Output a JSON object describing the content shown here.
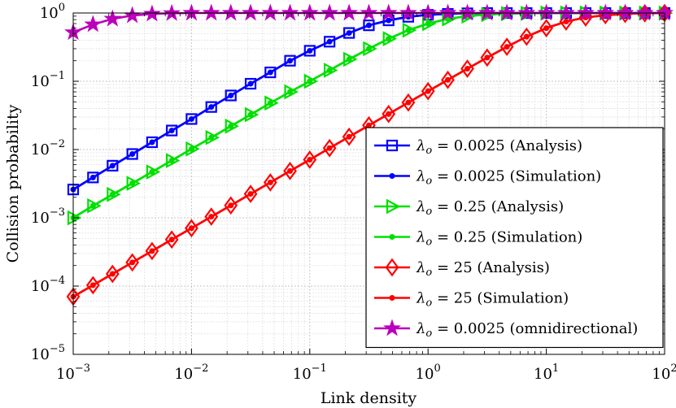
{
  "chart_data": {
    "type": "line",
    "title": "",
    "xlabel": "Link density",
    "ylabel": "Collision probability",
    "xscale": "log",
    "yscale": "log",
    "xlim": [
      0.001,
      100
    ],
    "ylim": [
      1e-05,
      1
    ],
    "x_ticks": [
      {
        "base": "10",
        "exp": "−3",
        "value": 0.001
      },
      {
        "base": "10",
        "exp": "−2",
        "value": 0.01
      },
      {
        "base": "10",
        "exp": "−1",
        "value": 0.1
      },
      {
        "base": "10",
        "exp": "0",
        "value": 1
      },
      {
        "base": "10",
        "exp": "1",
        "value": 10
      },
      {
        "base": "10",
        "exp": "2",
        "value": 100
      }
    ],
    "y_ticks": [
      {
        "base": "10",
        "exp": "−5",
        "value": 1e-05
      },
      {
        "base": "10",
        "exp": "−4",
        "value": 0.0001
      },
      {
        "base": "10",
        "exp": "−3",
        "value": 0.001
      },
      {
        "base": "10",
        "exp": "−2",
        "value": 0.01
      },
      {
        "base": "10",
        "exp": "−1",
        "value": 0.1
      },
      {
        "base": "10",
        "exp": "0",
        "value": 1
      }
    ],
    "grid": true,
    "legend_position": "lower-right",
    "x": [
      0.001,
      0.00147,
      0.00215,
      0.00316,
      0.00464,
      0.00681,
      0.01,
      0.0147,
      0.0215,
      0.0316,
      0.0464,
      0.0681,
      0.1,
      0.147,
      0.215,
      0.316,
      0.464,
      0.681,
      1,
      1.47,
      2.15,
      3.16,
      4.64,
      6.81,
      10,
      14.7,
      21.5,
      31.6,
      46.4,
      68.1,
      100
    ],
    "series": [
      {
        "name": "λo = 0.0025 (Analysis)",
        "sym": "λ",
        "sub": "o",
        "rest": " = 0.0025 (Analysis)",
        "color": "#0000ff",
        "marker": "square",
        "line": true,
        "values": [
          0.0026,
          0.0039,
          0.0058,
          0.0086,
          0.0128,
          0.019,
          0.028,
          0.042,
          0.062,
          0.092,
          0.135,
          0.2,
          0.28,
          0.38,
          0.51,
          0.66,
          0.78,
          0.88,
          0.94,
          0.97,
          0.99,
          1,
          1,
          1,
          1,
          1,
          1,
          1,
          1,
          1,
          1
        ]
      },
      {
        "name": "λo = 0.0025 (Simulation)",
        "sym": "λ",
        "sub": "o",
        "rest": " = 0.0025 (Simulation)",
        "color": "#0000ff",
        "marker": "dot",
        "line": true,
        "values": [
          0.0026,
          0.0039,
          0.0058,
          0.0086,
          0.0128,
          0.019,
          0.028,
          0.042,
          0.062,
          0.092,
          0.135,
          0.2,
          0.28,
          0.38,
          0.51,
          0.66,
          0.78,
          0.88,
          0.94,
          0.97,
          0.99,
          1,
          1,
          1,
          1,
          1,
          1,
          1,
          1,
          1,
          1
        ]
      },
      {
        "name": "λo = 0.25 (Analysis)",
        "sym": "λ",
        "sub": "o",
        "rest": " = 0.25 (Analysis)",
        "color": "#00e000",
        "marker": "triangle-right",
        "line": true,
        "values": [
          0.001,
          0.0015,
          0.0022,
          0.0032,
          0.0047,
          0.0069,
          0.0102,
          0.015,
          0.022,
          0.0325,
          0.048,
          0.07,
          0.1,
          0.145,
          0.21,
          0.3,
          0.42,
          0.56,
          0.7,
          0.82,
          0.9,
          0.95,
          0.98,
          0.99,
          1,
          1,
          1,
          1,
          1,
          1,
          1
        ]
      },
      {
        "name": "λo = 0.25 (Simulation)",
        "sym": "λ",
        "sub": "o",
        "rest": " = 0.25 (Simulation)",
        "color": "#00e000",
        "marker": "dot",
        "line": true,
        "values": [
          0.001,
          0.0015,
          0.0022,
          0.0032,
          0.0047,
          0.0069,
          0.0102,
          0.015,
          0.022,
          0.0325,
          0.048,
          0.07,
          0.1,
          0.145,
          0.21,
          0.3,
          0.42,
          0.56,
          0.7,
          0.82,
          0.9,
          0.95,
          0.98,
          0.99,
          1,
          1,
          1,
          1,
          1,
          1,
          1
        ]
      },
      {
        "name": "λo = 25 (Analysis)",
        "sym": "λ",
        "sub": "o",
        "rest": " = 25 (Analysis)",
        "color": "#ff0000",
        "marker": "diamond",
        "line": true,
        "values": [
          7e-05,
          0.000103,
          0.000151,
          0.000222,
          0.000326,
          0.00048,
          0.000705,
          0.00104,
          0.00152,
          0.00224,
          0.0033,
          0.00485,
          0.0071,
          0.0105,
          0.0154,
          0.0226,
          0.0332,
          0.0488,
          0.0716,
          0.105,
          0.153,
          0.222,
          0.32,
          0.45,
          0.6,
          0.75,
          0.86,
          0.93,
          0.97,
          0.99,
          1
        ]
      },
      {
        "name": "λo = 25 (Simulation)",
        "sym": "λ",
        "sub": "o",
        "rest": " = 25 (Simulation)",
        "color": "#ff0000",
        "marker": "dot",
        "line": true,
        "values": [
          7e-05,
          0.000103,
          0.000151,
          0.000222,
          0.000326,
          0.00048,
          0.000705,
          0.00104,
          0.00152,
          0.00224,
          0.0033,
          0.00485,
          0.0071,
          0.0105,
          0.0154,
          0.0226,
          0.0332,
          0.0488,
          0.0716,
          0.105,
          0.153,
          0.222,
          0.32,
          0.45,
          0.6,
          0.75,
          0.86,
          0.93,
          0.97,
          0.99,
          1
        ]
      },
      {
        "name": "λo = 0.0025 (omnidirectional)",
        "sym": "λ",
        "sub": "o",
        "rest": " = 0.0025 (omnidirectional)",
        "color": "#bb00bb",
        "marker": "star",
        "line": true,
        "values": [
          0.52,
          0.68,
          0.82,
          0.92,
          0.97,
          0.99,
          1,
          1,
          1,
          1,
          1,
          1,
          1,
          1,
          1,
          1,
          1,
          1,
          1,
          1,
          1,
          1,
          1,
          1,
          1,
          1,
          1,
          1,
          1,
          1,
          1
        ]
      }
    ]
  }
}
